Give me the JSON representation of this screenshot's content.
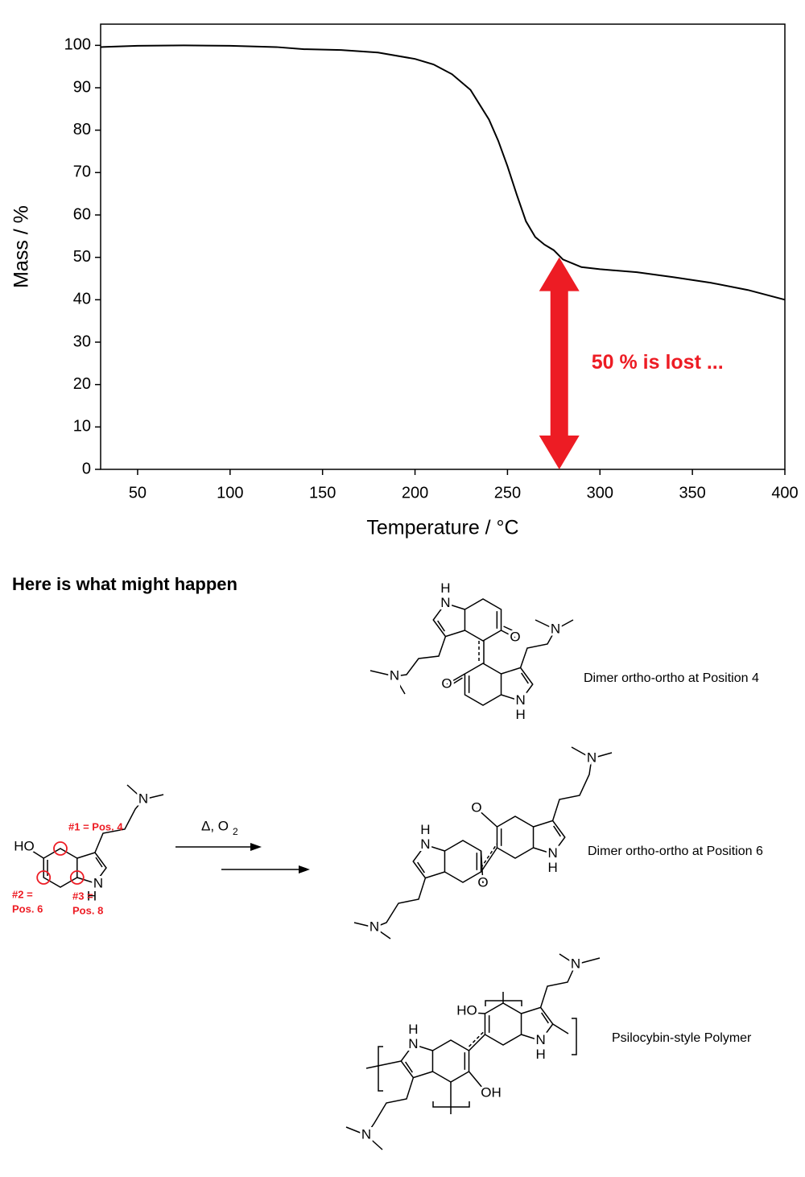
{
  "chart_data": {
    "type": "line",
    "xlabel": "Temperature / °C",
    "ylabel": "Mass / %",
    "xlim": [
      30,
      400
    ],
    "ylim": [
      0,
      105
    ],
    "xticks": [
      50,
      100,
      150,
      200,
      250,
      300,
      350,
      400
    ],
    "yticks": [
      0,
      10,
      20,
      30,
      40,
      50,
      60,
      70,
      80,
      90,
      100
    ],
    "x": [
      30,
      50,
      75,
      100,
      125,
      140,
      160,
      180,
      200,
      210,
      220,
      230,
      240,
      245,
      250,
      255,
      260,
      265,
      270,
      275,
      280,
      290,
      300,
      320,
      340,
      360,
      380,
      400
    ],
    "series": [
      {
        "color": "#000000",
        "values": [
          99.6,
          99.9,
          100,
          99.9,
          99.6,
          99.1,
          98.9,
          98.3,
          96.8,
          95.5,
          93.2,
          89.5,
          82.5,
          77.5,
          71.5,
          64.8,
          58.5,
          54.8,
          53,
          51.7,
          49.5,
          47.7,
          47.2,
          46.5,
          45.3,
          44,
          42.3,
          40
        ]
      }
    ],
    "annotations": [
      {
        "text": "50 % is lost ...",
        "color": "#ed1c24",
        "x": 278,
        "y_from": 0,
        "y_to": 50
      }
    ]
  },
  "scheme": {
    "heading": "Here is what might happen",
    "reactant": {
      "atoms": [
        "HO",
        "N",
        "H",
        "N"
      ],
      "sites": [
        "#1 = Pos. 4",
        "#2 =",
        "Pos. 6",
        "#3 =",
        "Pos. 8"
      ]
    },
    "conditions": {
      "text": "Δ, O",
      "subscript": "2"
    },
    "products": [
      {
        "caption": "Dimer ortho-ortho at Position 4",
        "atoms": [
          "H",
          "N",
          "O",
          "N",
          "O",
          "N",
          "H",
          "N"
        ]
      },
      {
        "caption": "Dimer ortho-ortho at Position 6",
        "atoms": [
          "H",
          "N",
          "O",
          "N",
          "O",
          "N",
          "H",
          "N"
        ]
      },
      {
        "caption": "Psilocybin-style Polymer",
        "atoms": [
          "H",
          "N",
          "OH",
          "N",
          "HO",
          "N",
          "H",
          "N"
        ]
      }
    ]
  }
}
